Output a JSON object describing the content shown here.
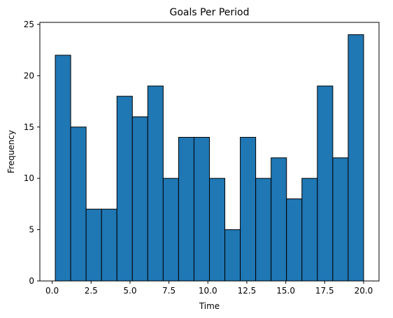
{
  "chart_data": {
    "type": "bar",
    "title": "Goals Per Period",
    "xlabel": "Time",
    "ylabel": "Frequency",
    "bin_edges": [
      0.2,
      1.19,
      2.18,
      3.17,
      4.16,
      5.15,
      6.14,
      7.13,
      8.12,
      9.11,
      10.1,
      11.09,
      12.08,
      13.07,
      14.06,
      15.05,
      16.04,
      17.03,
      18.02,
      19.01,
      20.0
    ],
    "values": [
      22,
      15,
      7,
      7,
      18,
      16,
      19,
      10,
      14,
      14,
      10,
      5,
      14,
      10,
      12,
      8,
      10,
      19,
      12,
      24
    ],
    "xlim": [
      -0.79,
      20.99
    ],
    "ylim": [
      0,
      25.2
    ],
    "x_ticks": [
      0.0,
      2.5,
      5.0,
      7.5,
      10.0,
      12.5,
      15.0,
      17.5,
      20.0
    ],
    "x_tick_labels": [
      "0.0",
      "2.5",
      "5.0",
      "7.5",
      "10.0",
      "12.5",
      "15.0",
      "17.5",
      "20.0"
    ],
    "y_ticks": [
      0,
      5,
      10,
      15,
      20,
      25
    ],
    "y_tick_labels": [
      "0",
      "5",
      "10",
      "15",
      "20",
      "25"
    ],
    "bar_color": "#1f77b4",
    "edge_color": "#000000",
    "grid": false,
    "legend": false
  }
}
